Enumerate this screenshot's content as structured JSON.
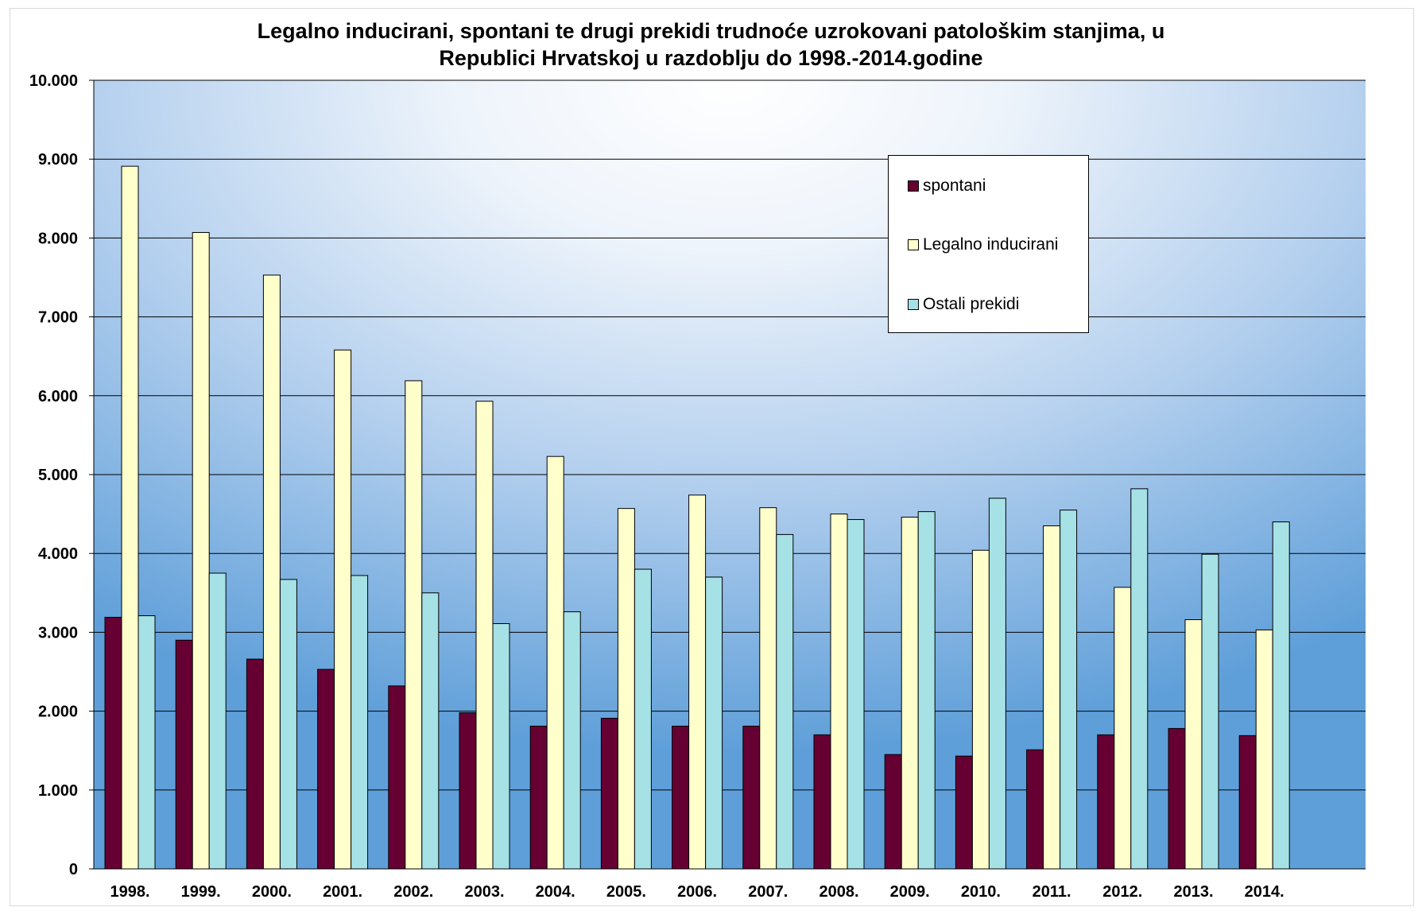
{
  "chart_data": {
    "type": "bar",
    "title": [
      "Legalno inducirani, spontani te drugi prekidi trudnoće uzrokovani patološkim stanjima, u",
      "Republici Hrvatskoj u razdoblju do 1998.-2014.godine"
    ],
    "categories": [
      "1998.",
      "1999.",
      "2000.",
      "2001.",
      "2002.",
      "2003.",
      "2004.",
      "2005.",
      "2006.",
      "2007.",
      "2008.",
      "2009.",
      "2010.",
      "2011.",
      "2012.",
      "2013.",
      "2014."
    ],
    "series": [
      {
        "name": "spontani",
        "color": "#660033",
        "values": [
          3190,
          2900,
          2660,
          2530,
          2320,
          1980,
          1810,
          1910,
          1810,
          1810,
          1700,
          1450,
          1430,
          1510,
          1700,
          1780,
          1690
        ]
      },
      {
        "name": "Legalno inducirani",
        "color": "#FFFFCC",
        "values": [
          8910,
          8070,
          7530,
          6580,
          6190,
          5930,
          5230,
          4570,
          4740,
          4580,
          4500,
          4460,
          4040,
          4350,
          3570,
          3160,
          3030
        ]
      },
      {
        "name": "Ostali prekidi",
        "color": "#A6E1E6",
        "values": [
          3210,
          3750,
          3670,
          3720,
          3500,
          3110,
          3260,
          3800,
          3700,
          4240,
          4430,
          4530,
          4700,
          4550,
          4820,
          3990,
          4400
        ]
      }
    ],
    "y_ticks": [
      "0",
      "1.000",
      "2.000",
      "3.000",
      "4.000",
      "5.000",
      "6.000",
      "7.000",
      "8.000",
      "9.000",
      "10.000"
    ],
    "ylim": [
      0,
      10000
    ],
    "xlabel": "",
    "ylabel": "",
    "grid": true,
    "legend_position": "top-right (inside plot)",
    "background": "blue radial gradient"
  }
}
